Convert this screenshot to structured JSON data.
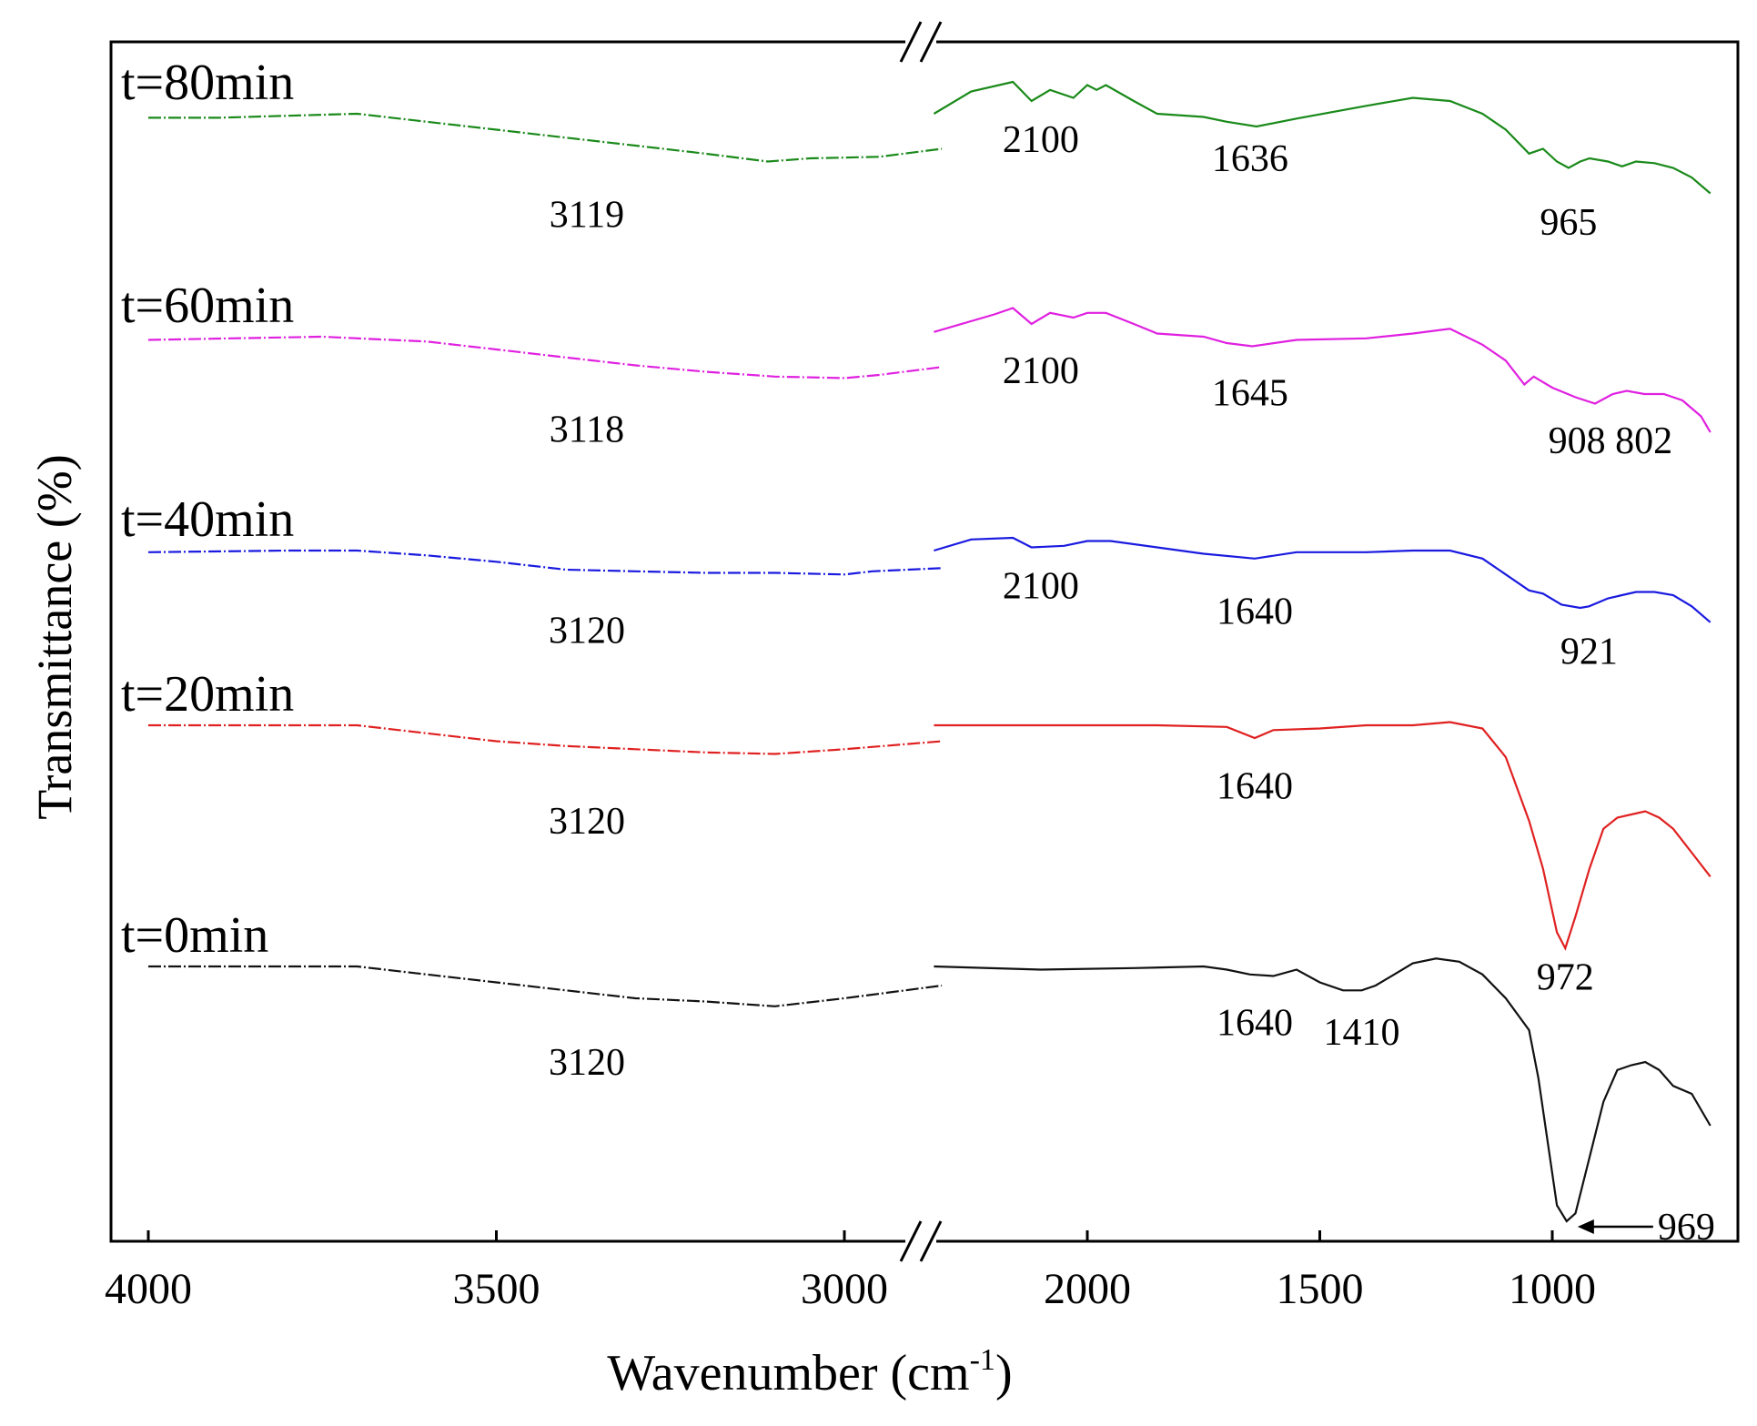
{
  "chart_data": {
    "type": "line",
    "xlabel_main": "Wavenumber (cm",
    "xlabel_sup": "-1",
    "xlabel_end": ")",
    "ylabel": "Transmittance (%)",
    "axis_break": {
      "left": [
        4000,
        2850
      ],
      "right": [
        2350,
        650
      ]
    },
    "x_ticks_left": [
      4000,
      3500,
      3000
    ],
    "x_ticks_right": [
      2000,
      1500,
      1000
    ],
    "series": [
      {
        "name": "t=80min",
        "color": "#1a8a1a",
        "left": [
          [
            4000,
            0.25
          ],
          [
            3900,
            0.25
          ],
          [
            3700,
            0.0
          ],
          [
            3600,
            0.5
          ],
          [
            3500,
            1.0
          ],
          [
            3400,
            1.5
          ],
          [
            3300,
            2.0
          ],
          [
            3200,
            2.5
          ],
          [
            3110,
            3.0
          ],
          [
            3050,
            2.8
          ],
          [
            2950,
            2.7
          ],
          [
            2860,
            2.2
          ]
        ],
        "right": [
          [
            2330,
            0.0
          ],
          [
            2250,
            -1.4
          ],
          [
            2160,
            -2.0
          ],
          [
            2120,
            -0.8
          ],
          [
            2080,
            -1.5
          ],
          [
            2030,
            -1.0
          ],
          [
            2000,
            -1.8
          ],
          [
            1980,
            -1.5
          ],
          [
            1960,
            -1.8
          ],
          [
            1900,
            -0.8
          ],
          [
            1850,
            0.0
          ],
          [
            1750,
            0.2
          ],
          [
            1700,
            0.5
          ],
          [
            1636,
            0.8
          ],
          [
            1550,
            0.3
          ],
          [
            1400,
            -0.5
          ],
          [
            1300,
            -1.0
          ],
          [
            1220,
            -0.8
          ],
          [
            1150,
            0.0
          ],
          [
            1100,
            1.0
          ],
          [
            1050,
            2.5
          ],
          [
            1020,
            2.2
          ],
          [
            990,
            3.0
          ],
          [
            965,
            3.4
          ],
          [
            940,
            3.0
          ],
          [
            920,
            2.8
          ],
          [
            880,
            3.0
          ],
          [
            850,
            3.3
          ],
          [
            820,
            3.0
          ],
          [
            780,
            3.1
          ],
          [
            740,
            3.4
          ],
          [
            700,
            4.0
          ],
          [
            660,
            5.0
          ]
        ]
      },
      {
        "name": "t=60min",
        "color": "#e020e0",
        "left": [
          [
            4000,
            0.2
          ],
          [
            3750,
            0.0
          ],
          [
            3600,
            0.3
          ],
          [
            3500,
            0.8
          ],
          [
            3400,
            1.3
          ],
          [
            3300,
            1.8
          ],
          [
            3200,
            2.2
          ],
          [
            3100,
            2.5
          ],
          [
            3000,
            2.6
          ],
          [
            2950,
            2.4
          ],
          [
            2860,
            1.9
          ]
        ],
        "right": [
          [
            2330,
            -0.3
          ],
          [
            2200,
            -1.4
          ],
          [
            2160,
            -1.8
          ],
          [
            2120,
            -0.8
          ],
          [
            2080,
            -1.5
          ],
          [
            2030,
            -1.2
          ],
          [
            2000,
            -1.5
          ],
          [
            1960,
            -1.5
          ],
          [
            1900,
            -0.8
          ],
          [
            1850,
            -0.2
          ],
          [
            1750,
            0.0
          ],
          [
            1700,
            0.4
          ],
          [
            1645,
            0.6
          ],
          [
            1550,
            0.2
          ],
          [
            1400,
            0.1
          ],
          [
            1300,
            -0.2
          ],
          [
            1220,
            -0.5
          ],
          [
            1150,
            0.5
          ],
          [
            1100,
            1.5
          ],
          [
            1060,
            3.0
          ],
          [
            1040,
            2.5
          ],
          [
            1000,
            3.2
          ],
          [
            950,
            3.8
          ],
          [
            908,
            4.2
          ],
          [
            870,
            3.6
          ],
          [
            840,
            3.4
          ],
          [
            802,
            3.6
          ],
          [
            760,
            3.6
          ],
          [
            720,
            4.0
          ],
          [
            680,
            5.0
          ],
          [
            660,
            6.0
          ]
        ]
      },
      {
        "name": "t=40min",
        "color": "#1a1ae0",
        "left": [
          [
            4000,
            0.1
          ],
          [
            3800,
            0.0
          ],
          [
            3700,
            0.0
          ],
          [
            3600,
            0.3
          ],
          [
            3500,
            0.7
          ],
          [
            3400,
            1.2
          ],
          [
            3300,
            1.3
          ],
          [
            3200,
            1.4
          ],
          [
            3100,
            1.4
          ],
          [
            3000,
            1.5
          ],
          [
            2960,
            1.3
          ],
          [
            2860,
            1.1
          ]
        ],
        "right": [
          [
            2330,
            0.0
          ],
          [
            2250,
            -0.7
          ],
          [
            2160,
            -0.8
          ],
          [
            2120,
            -0.2
          ],
          [
            2050,
            -0.3
          ],
          [
            2000,
            -0.6
          ],
          [
            1950,
            -0.6
          ],
          [
            1850,
            -0.2
          ],
          [
            1750,
            0.2
          ],
          [
            1640,
            0.5
          ],
          [
            1550,
            0.1
          ],
          [
            1400,
            0.1
          ],
          [
            1300,
            0.0
          ],
          [
            1220,
            0.0
          ],
          [
            1150,
            0.5
          ],
          [
            1100,
            1.5
          ],
          [
            1050,
            2.5
          ],
          [
            1020,
            2.7
          ],
          [
            980,
            3.4
          ],
          [
            940,
            3.6
          ],
          [
            921,
            3.5
          ],
          [
            880,
            3.0
          ],
          [
            820,
            2.6
          ],
          [
            780,
            2.6
          ],
          [
            740,
            2.8
          ],
          [
            700,
            3.5
          ],
          [
            660,
            4.5
          ]
        ]
      },
      {
        "name": "t=20min",
        "color": "#e02020",
        "left": [
          [
            4000,
            0.0
          ],
          [
            3800,
            0.0
          ],
          [
            3700,
            0.0
          ],
          [
            3600,
            0.5
          ],
          [
            3500,
            1.0
          ],
          [
            3400,
            1.3
          ],
          [
            3300,
            1.5
          ],
          [
            3200,
            1.7
          ],
          [
            3100,
            1.8
          ],
          [
            3000,
            1.5
          ],
          [
            2860,
            1.0
          ]
        ],
        "right": [
          [
            2330,
            0.0
          ],
          [
            2150,
            0.0
          ],
          [
            2000,
            0.0
          ],
          [
            1850,
            0.0
          ],
          [
            1700,
            0.1
          ],
          [
            1640,
            0.8
          ],
          [
            1600,
            0.3
          ],
          [
            1500,
            0.2
          ],
          [
            1400,
            0.0
          ],
          [
            1300,
            0.0
          ],
          [
            1220,
            -0.2
          ],
          [
            1150,
            0.2
          ],
          [
            1100,
            2.0
          ],
          [
            1050,
            6.0
          ],
          [
            1020,
            9.0
          ],
          [
            990,
            13.0
          ],
          [
            972,
            14.0
          ],
          [
            950,
            12.0
          ],
          [
            920,
            9.0
          ],
          [
            890,
            6.5
          ],
          [
            860,
            5.8
          ],
          [
            830,
            5.6
          ],
          [
            800,
            5.4
          ],
          [
            770,
            5.8
          ],
          [
            740,
            6.5
          ],
          [
            700,
            8.0
          ],
          [
            660,
            9.5
          ]
        ]
      },
      {
        "name": "t=0min",
        "color": "#111111",
        "left": [
          [
            4000,
            0.0
          ],
          [
            3800,
            0.0
          ],
          [
            3700,
            0.0
          ],
          [
            3600,
            0.5
          ],
          [
            3500,
            1.0
          ],
          [
            3400,
            1.5
          ],
          [
            3300,
            2.0
          ],
          [
            3200,
            2.2
          ],
          [
            3100,
            2.5
          ],
          [
            3000,
            2.0
          ],
          [
            2860,
            1.2
          ]
        ],
        "right": [
          [
            2330,
            0.0
          ],
          [
            2100,
            0.2
          ],
          [
            1900,
            0.1
          ],
          [
            1750,
            0.0
          ],
          [
            1700,
            0.2
          ],
          [
            1650,
            0.5
          ],
          [
            1600,
            0.6
          ],
          [
            1550,
            0.2
          ],
          [
            1500,
            1.0
          ],
          [
            1450,
            1.5
          ],
          [
            1410,
            1.5
          ],
          [
            1380,
            1.2
          ],
          [
            1340,
            0.5
          ],
          [
            1300,
            -0.2
          ],
          [
            1250,
            -0.5
          ],
          [
            1200,
            -0.3
          ],
          [
            1150,
            0.5
          ],
          [
            1100,
            2.0
          ],
          [
            1050,
            4.0
          ],
          [
            1030,
            7.0
          ],
          [
            1010,
            11.0
          ],
          [
            990,
            15.0
          ],
          [
            969,
            16.0
          ],
          [
            950,
            15.5
          ],
          [
            920,
            12.0
          ],
          [
            890,
            8.5
          ],
          [
            860,
            6.5
          ],
          [
            830,
            6.2
          ],
          [
            800,
            6.0
          ],
          [
            770,
            6.5
          ],
          [
            740,
            7.5
          ],
          [
            700,
            8.0
          ],
          [
            660,
            10.0
          ]
        ]
      }
    ],
    "annotations": [
      {
        "text": "3119",
        "series": 0,
        "x": 3370,
        "dy": 5.5
      },
      {
        "text": "2100",
        "series": 0,
        "x": 2100,
        "dy": 0.8
      },
      {
        "text": "1636",
        "series": 0,
        "x": 1650,
        "dy": 2.0
      },
      {
        "text": "965",
        "series": 0,
        "x": 965,
        "dy": 6.0
      },
      {
        "text": "3118",
        "series": 1,
        "x": 3370,
        "dy": 5.0
      },
      {
        "text": "2100",
        "series": 1,
        "x": 2100,
        "dy": 1.3
      },
      {
        "text": "1645",
        "series": 1,
        "x": 1650,
        "dy": 2.7
      },
      {
        "text": "908 802",
        "series": 1,
        "x": 875,
        "dy": 5.7
      },
      {
        "text": "3120",
        "series": 2,
        "x": 3370,
        "dy": 4.2
      },
      {
        "text": "2100",
        "series": 2,
        "x": 2100,
        "dy": 1.4
      },
      {
        "text": "1640",
        "series": 2,
        "x": 1640,
        "dy": 3.0
      },
      {
        "text": "921",
        "series": 2,
        "x": 921,
        "dy": 5.5
      },
      {
        "text": "3120",
        "series": 3,
        "x": 3370,
        "dy": 5.2
      },
      {
        "text": "1640",
        "series": 3,
        "x": 1640,
        "dy": 3.0
      },
      {
        "text": "972",
        "series": 3,
        "x": 972,
        "dy": 15.0
      },
      {
        "text": "3120",
        "series": 4,
        "x": 3370,
        "dy": 5.2
      },
      {
        "text": "1640",
        "series": 4,
        "x": 1640,
        "dy": 2.7
      },
      {
        "text": "1410",
        "series": 4,
        "x": 1410,
        "dy": 3.3
      },
      {
        "text": "969",
        "series": 4,
        "x": 969,
        "dy": 16.0,
        "arrow": true
      }
    ]
  }
}
